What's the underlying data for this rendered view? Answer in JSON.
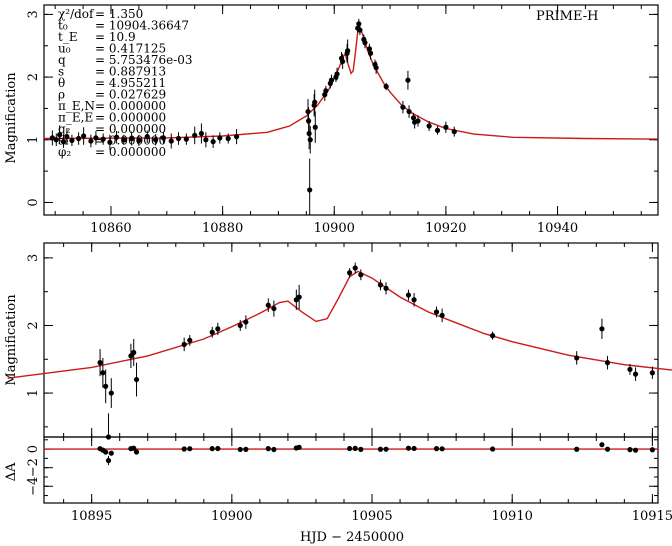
{
  "chart_data": [
    {
      "id": "top",
      "type": "scatter",
      "title": "PRIME-H",
      "ylabel": "Magnification",
      "xlim": [
        10848,
        10958
      ],
      "ylim": [
        -0.2,
        3.15
      ],
      "xticks": [
        10860,
        10880,
        10900,
        10920,
        10940
      ],
      "yticks": [
        0,
        1,
        2,
        3
      ],
      "params": [
        {
          "label": "χ²/dof",
          "value": "= 1.350"
        },
        {
          "label": "t₀",
          "value": "= 10904.36647"
        },
        {
          "label": "t_E",
          "value": "= 10.9"
        },
        {
          "label": "u₀",
          "value": "= 0.417125"
        },
        {
          "label": "q",
          "value": "= 5.753476e-03"
        },
        {
          "label": "s",
          "value": "= 0.887913"
        },
        {
          "label": "θ",
          "value": "= 4.955211"
        },
        {
          "label": "ρ",
          "value": "= 0.027629"
        },
        {
          "label": "π_E,N",
          "value": "= 0.000000"
        },
        {
          "label": "π_E,E",
          "value": "= 0.000000"
        },
        {
          "label": "q₂",
          "value": "= 0.000000"
        },
        {
          "label": "s₂",
          "value": "= 0.000000"
        },
        {
          "label": "φ₂",
          "value": "= 0.000000"
        }
      ],
      "model": [
        [
          10848,
          1.02
        ],
        [
          10870,
          1.03
        ],
        [
          10880,
          1.06
        ],
        [
          10888,
          1.12
        ],
        [
          10892,
          1.22
        ],
        [
          10895,
          1.38
        ],
        [
          10897,
          1.55
        ],
        [
          10899,
          1.8
        ],
        [
          10900,
          1.98
        ],
        [
          10901,
          2.18
        ],
        [
          10901.7,
          2.34
        ],
        [
          10902,
          2.36
        ],
        [
          10902.5,
          2.2
        ],
        [
          10903,
          2.06
        ],
        [
          10903.4,
          2.1
        ],
        [
          10903.8,
          2.4
        ],
        [
          10904.2,
          2.72
        ],
        [
          10904.5,
          2.8
        ],
        [
          10905,
          2.7
        ],
        [
          10906,
          2.42
        ],
        [
          10907,
          2.2
        ],
        [
          10908,
          2.04
        ],
        [
          10909,
          1.88
        ],
        [
          10910,
          1.76
        ],
        [
          10912,
          1.56
        ],
        [
          10914,
          1.42
        ],
        [
          10917,
          1.28
        ],
        [
          10920,
          1.18
        ],
        [
          10925,
          1.09
        ],
        [
          10932,
          1.04
        ],
        [
          10945,
          1.02
        ],
        [
          10958,
          1.01
        ]
      ],
      "points": [
        [
          10849.5,
          1.03,
          0.12
        ],
        [
          10850.2,
          1.0,
          0.1
        ],
        [
          10850.8,
          1.08,
          0.15
        ],
        [
          10851.5,
          0.97,
          0.1
        ],
        [
          10852.1,
          1.05,
          0.12
        ],
        [
          10853,
          0.99,
          0.09
        ],
        [
          10854.2,
          1.02,
          0.1
        ],
        [
          10855.1,
          1.06,
          0.14
        ],
        [
          10856.4,
          0.98,
          0.1
        ],
        [
          10857.3,
          1.03,
          0.11
        ],
        [
          10858.6,
          1.01,
          0.09
        ],
        [
          10859.8,
          0.96,
          0.12
        ],
        [
          10861,
          1.04,
          0.1
        ],
        [
          10862.3,
          1.0,
          0.08
        ],
        [
          10863.7,
          1.02,
          0.11
        ],
        [
          10865,
          0.99,
          0.09
        ],
        [
          10866.5,
          1.05,
          0.1
        ],
        [
          10868,
          1.0,
          0.09
        ],
        [
          10869.4,
          1.03,
          0.1
        ],
        [
          10870.8,
          0.98,
          0.12
        ],
        [
          10872.1,
          1.02,
          0.1
        ],
        [
          10873.5,
          1.01,
          0.09
        ],
        [
          10875,
          1.07,
          0.14
        ],
        [
          10876.2,
          1.1,
          0.16
        ],
        [
          10877,
          1.0,
          0.12
        ],
        [
          10878.3,
          0.97,
          0.1
        ],
        [
          10879.5,
          1.03,
          0.09
        ],
        [
          10881,
          1.02,
          0.08
        ],
        [
          10882.5,
          1.05,
          0.12
        ],
        [
          10895.3,
          1.45,
          0.2
        ],
        [
          10895.4,
          1.3,
          0.22
        ],
        [
          10895.5,
          1.1,
          0.25
        ],
        [
          10895.6,
          0.2,
          0.5
        ],
        [
          10895.7,
          1.0,
          0.22
        ],
        [
          10896.4,
          1.55,
          0.18
        ],
        [
          10896.5,
          1.6,
          0.2
        ],
        [
          10896.6,
          1.2,
          0.25
        ],
        [
          10898.3,
          1.72,
          0.1
        ],
        [
          10898.5,
          1.78,
          0.08
        ],
        [
          10899.3,
          1.9,
          0.08
        ],
        [
          10899.5,
          1.95,
          0.09
        ],
        [
          10900.3,
          2.0,
          0.08
        ],
        [
          10900.5,
          2.05,
          0.1
        ],
        [
          10901.3,
          2.3,
          0.1
        ],
        [
          10901.5,
          2.25,
          0.12
        ],
        [
          10902.3,
          2.38,
          0.15
        ],
        [
          10902.4,
          2.42,
          0.18
        ],
        [
          10904.2,
          2.78,
          0.07
        ],
        [
          10904.4,
          2.85,
          0.08
        ],
        [
          10904.6,
          2.75,
          0.08
        ],
        [
          10905.3,
          2.6,
          0.08
        ],
        [
          10905.5,
          2.55,
          0.09
        ],
        [
          10906.3,
          2.45,
          0.08
        ],
        [
          10906.5,
          2.38,
          0.1
        ],
        [
          10907.3,
          2.2,
          0.08
        ],
        [
          10907.5,
          2.15,
          0.1
        ],
        [
          10909.3,
          1.85,
          0.06
        ],
        [
          10912.3,
          1.52,
          0.1
        ],
        [
          10913.2,
          1.95,
          0.15
        ],
        [
          10913.4,
          1.45,
          0.1
        ],
        [
          10914.2,
          1.35,
          0.08
        ],
        [
          10914.4,
          1.28,
          0.1
        ],
        [
          10915,
          1.3,
          0.09
        ],
        [
          10917,
          1.22,
          0.08
        ],
        [
          10918.5,
          1.15,
          0.07
        ],
        [
          10920,
          1.2,
          0.09
        ],
        [
          10921.5,
          1.13,
          0.08
        ]
      ]
    },
    {
      "id": "zoom",
      "type": "scatter",
      "ylabel": "Magnification",
      "xlim": [
        10893.3,
        10915.2
      ],
      "ylim": [
        0.35,
        3.22
      ],
      "yticks": [
        1,
        2,
        3
      ]
    },
    {
      "id": "residual",
      "type": "scatter",
      "ylabel": "ΔA",
      "xlabel": "HJD − 2450000",
      "xlim": [
        10893.3,
        10915.2
      ],
      "ylim": [
        -5.8,
        1.3
      ],
      "xticks": [
        10895,
        10900,
        10905,
        10910,
        10915
      ],
      "xticklabels": [
        "10895",
        "10900",
        "10905",
        "10910",
        "10915"
      ],
      "yticks": [
        0,
        -2,
        -4
      ],
      "yticklabels": [
        "0",
        "−2",
        "−4"
      ]
    }
  ],
  "colors": {
    "model": "#cc1a1a",
    "data": "#000000",
    "axes": "#000000"
  }
}
